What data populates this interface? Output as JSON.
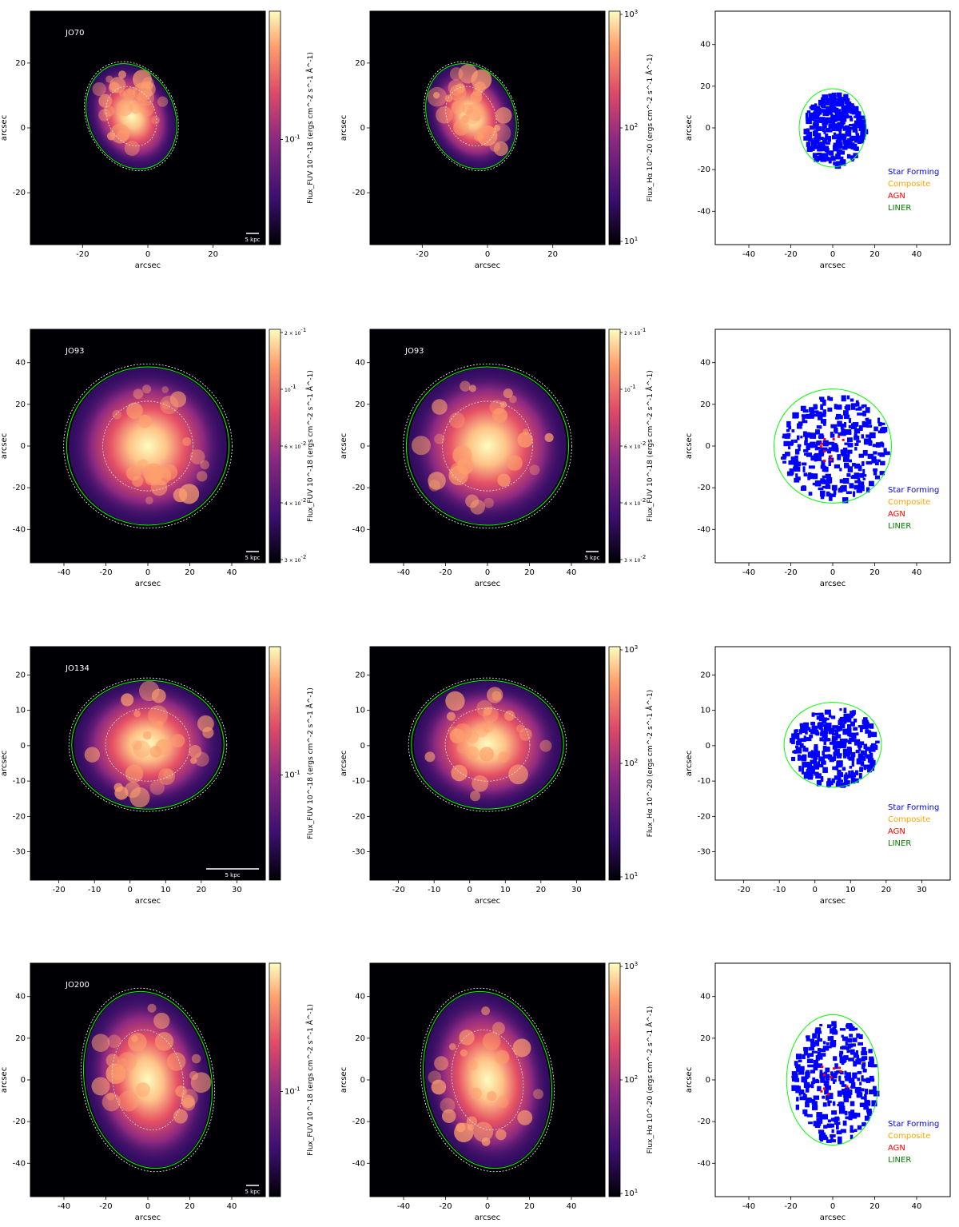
{
  "figure": {
    "rows": [
      {
        "galaxy": "JO70",
        "fuv": {
          "label": "JO70",
          "xticks": [
            "-20",
            "0",
            "20"
          ],
          "yticks": [
            "20",
            "0",
            "-20"
          ],
          "xlabel": "arcsec",
          "ylabel": "arcsec",
          "scalebar": "5 kpc",
          "cbar_label": "Flux_FUV 10^-18 (ergs cm^-2 s^-1 Å^-1)",
          "cbar_ticks": [
            "10^-1"
          ]
        },
        "ha": {
          "label": "",
          "xticks": [
            "-20",
            "0",
            "20"
          ],
          "yticks": [
            "20",
            "0",
            "-20"
          ],
          "xlabel": "arcsec",
          "ylabel": "arcsec",
          "scalebar": "",
          "cbar_label": "Flux_Hα 10^-20 (ergs cm^-2 s^-1 Å^-1)",
          "cbar_ticks": [
            "10^3",
            "10^2",
            "10^1"
          ]
        },
        "bpt": {
          "xticks": [
            "-40",
            "-20",
            "0",
            "20",
            "40"
          ],
          "yticks": [
            "40",
            "20",
            "0",
            "-20",
            "-40"
          ],
          "xlabel": "arcsec",
          "ylabel": "arcsec"
        }
      },
      {
        "galaxy": "JO93",
        "fuv": {
          "label": "JO93",
          "xticks": [
            "-40",
            "-20",
            "0",
            "20",
            "40"
          ],
          "yticks": [
            "40",
            "20",
            "0",
            "-20",
            "-40"
          ],
          "xlabel": "arcsec",
          "ylabel": "arcsec",
          "scalebar": "5 kpc",
          "cbar_label": "Flux_FUV 10^-18 (ergs cm^-2 s^-1 Å^-1)",
          "cbar_ticks": [
            "2 × 10^-1",
            "10^-1",
            "6 × 10^-2",
            "4 × 10^-2",
            "3 × 10^-2"
          ]
        },
        "ha": {
          "label": "JO93",
          "xticks": [
            "-40",
            "-20",
            "0",
            "20",
            "40"
          ],
          "yticks": [
            "40",
            "20",
            "0",
            "-20",
            "-40"
          ],
          "xlabel": "arcsec",
          "ylabel": "arcsec",
          "scalebar": "5 kpc",
          "cbar_label": "Flux_FUV 10^-18 (ergs cm^-2 s^-1 Å^-1)",
          "cbar_ticks": [
            "2 × 10^-1",
            "10^-1",
            "6 × 10^-2",
            "4 × 10^-2",
            "3 × 10^-2"
          ]
        },
        "bpt": {
          "xticks": [
            "-40",
            "-20",
            "0",
            "20",
            "40"
          ],
          "yticks": [
            "40",
            "20",
            "0",
            "-20",
            "-40"
          ],
          "xlabel": "arcsec",
          "ylabel": "arcsec"
        }
      },
      {
        "galaxy": "JO134",
        "fuv": {
          "label": "JO134",
          "xticks": [
            "-20",
            "-10",
            "0",
            "10",
            "20",
            "30"
          ],
          "yticks": [
            "20",
            "10",
            "0",
            "-10",
            "-20",
            "-30"
          ],
          "xlabel": "arcsec",
          "ylabel": "arcsec",
          "scalebar": "5 kpc",
          "cbar_label": "Flux_FUV 10^-18 (ergs cm^-2 s^-1 Å^-1)",
          "cbar_ticks": [
            "10^-1"
          ]
        },
        "ha": {
          "label": "",
          "xticks": [
            "-20",
            "-10",
            "0",
            "10",
            "20",
            "30"
          ],
          "yticks": [
            "20",
            "10",
            "0",
            "-10",
            "-20",
            "-30"
          ],
          "xlabel": "arcsec",
          "ylabel": "arcsec",
          "scalebar": "",
          "cbar_label": "Flux_Hα 10^-20 (ergs cm^-2 s^-1 Å^-1)",
          "cbar_ticks": [
            "10^3",
            "10^2",
            "10^1"
          ]
        },
        "bpt": {
          "xticks": [
            "-20",
            "-10",
            "0",
            "10",
            "20",
            "30"
          ],
          "yticks": [
            "20",
            "10",
            "0",
            "-10",
            "-20",
            "-30"
          ],
          "xlabel": "arcsec",
          "ylabel": "arcsec"
        }
      },
      {
        "galaxy": "JO200",
        "fuv": {
          "label": "JO200",
          "xticks": [
            "-40",
            "-20",
            "0",
            "20",
            "40"
          ],
          "yticks": [
            "40",
            "20",
            "0",
            "-20",
            "-40"
          ],
          "xlabel": "arcsec",
          "ylabel": "arcsec",
          "scalebar": "5 kpc",
          "cbar_label": "Flux_FUV 10^-18 (ergs cm^-2 s^-1 Å^-1)",
          "cbar_ticks": [
            "10^-1"
          ]
        },
        "ha": {
          "label": "",
          "xticks": [
            "-40",
            "-20",
            "0",
            "20",
            "40"
          ],
          "yticks": [
            "40",
            "20",
            "0",
            "-20",
            "-40"
          ],
          "xlabel": "arcsec",
          "ylabel": "arcsec",
          "scalebar": "",
          "cbar_label": "Flux_Hα 10^-20 (ergs cm^-2 s^-1 Å^-1)",
          "cbar_ticks": [
            "10^3",
            "10^2",
            "10^1"
          ]
        },
        "bpt": {
          "xticks": [
            "-40",
            "-20",
            "0",
            "20",
            "40"
          ],
          "yticks": [
            "40",
            "20",
            "0",
            "-20",
            "-40"
          ],
          "xlabel": "arcsec",
          "ylabel": "arcsec"
        }
      }
    ],
    "legend": [
      {
        "label": "Star Forming",
        "color": "#0000ff"
      },
      {
        "label": "Composite",
        "color": "#ffa500"
      },
      {
        "label": "AGN",
        "color": "#ff0000"
      },
      {
        "label": "LINER",
        "color": "#008000"
      }
    ],
    "colors": {
      "magma_low": "#000004",
      "magma_high": "#fcfdbf",
      "contour_green": "#00ff00"
    }
  }
}
